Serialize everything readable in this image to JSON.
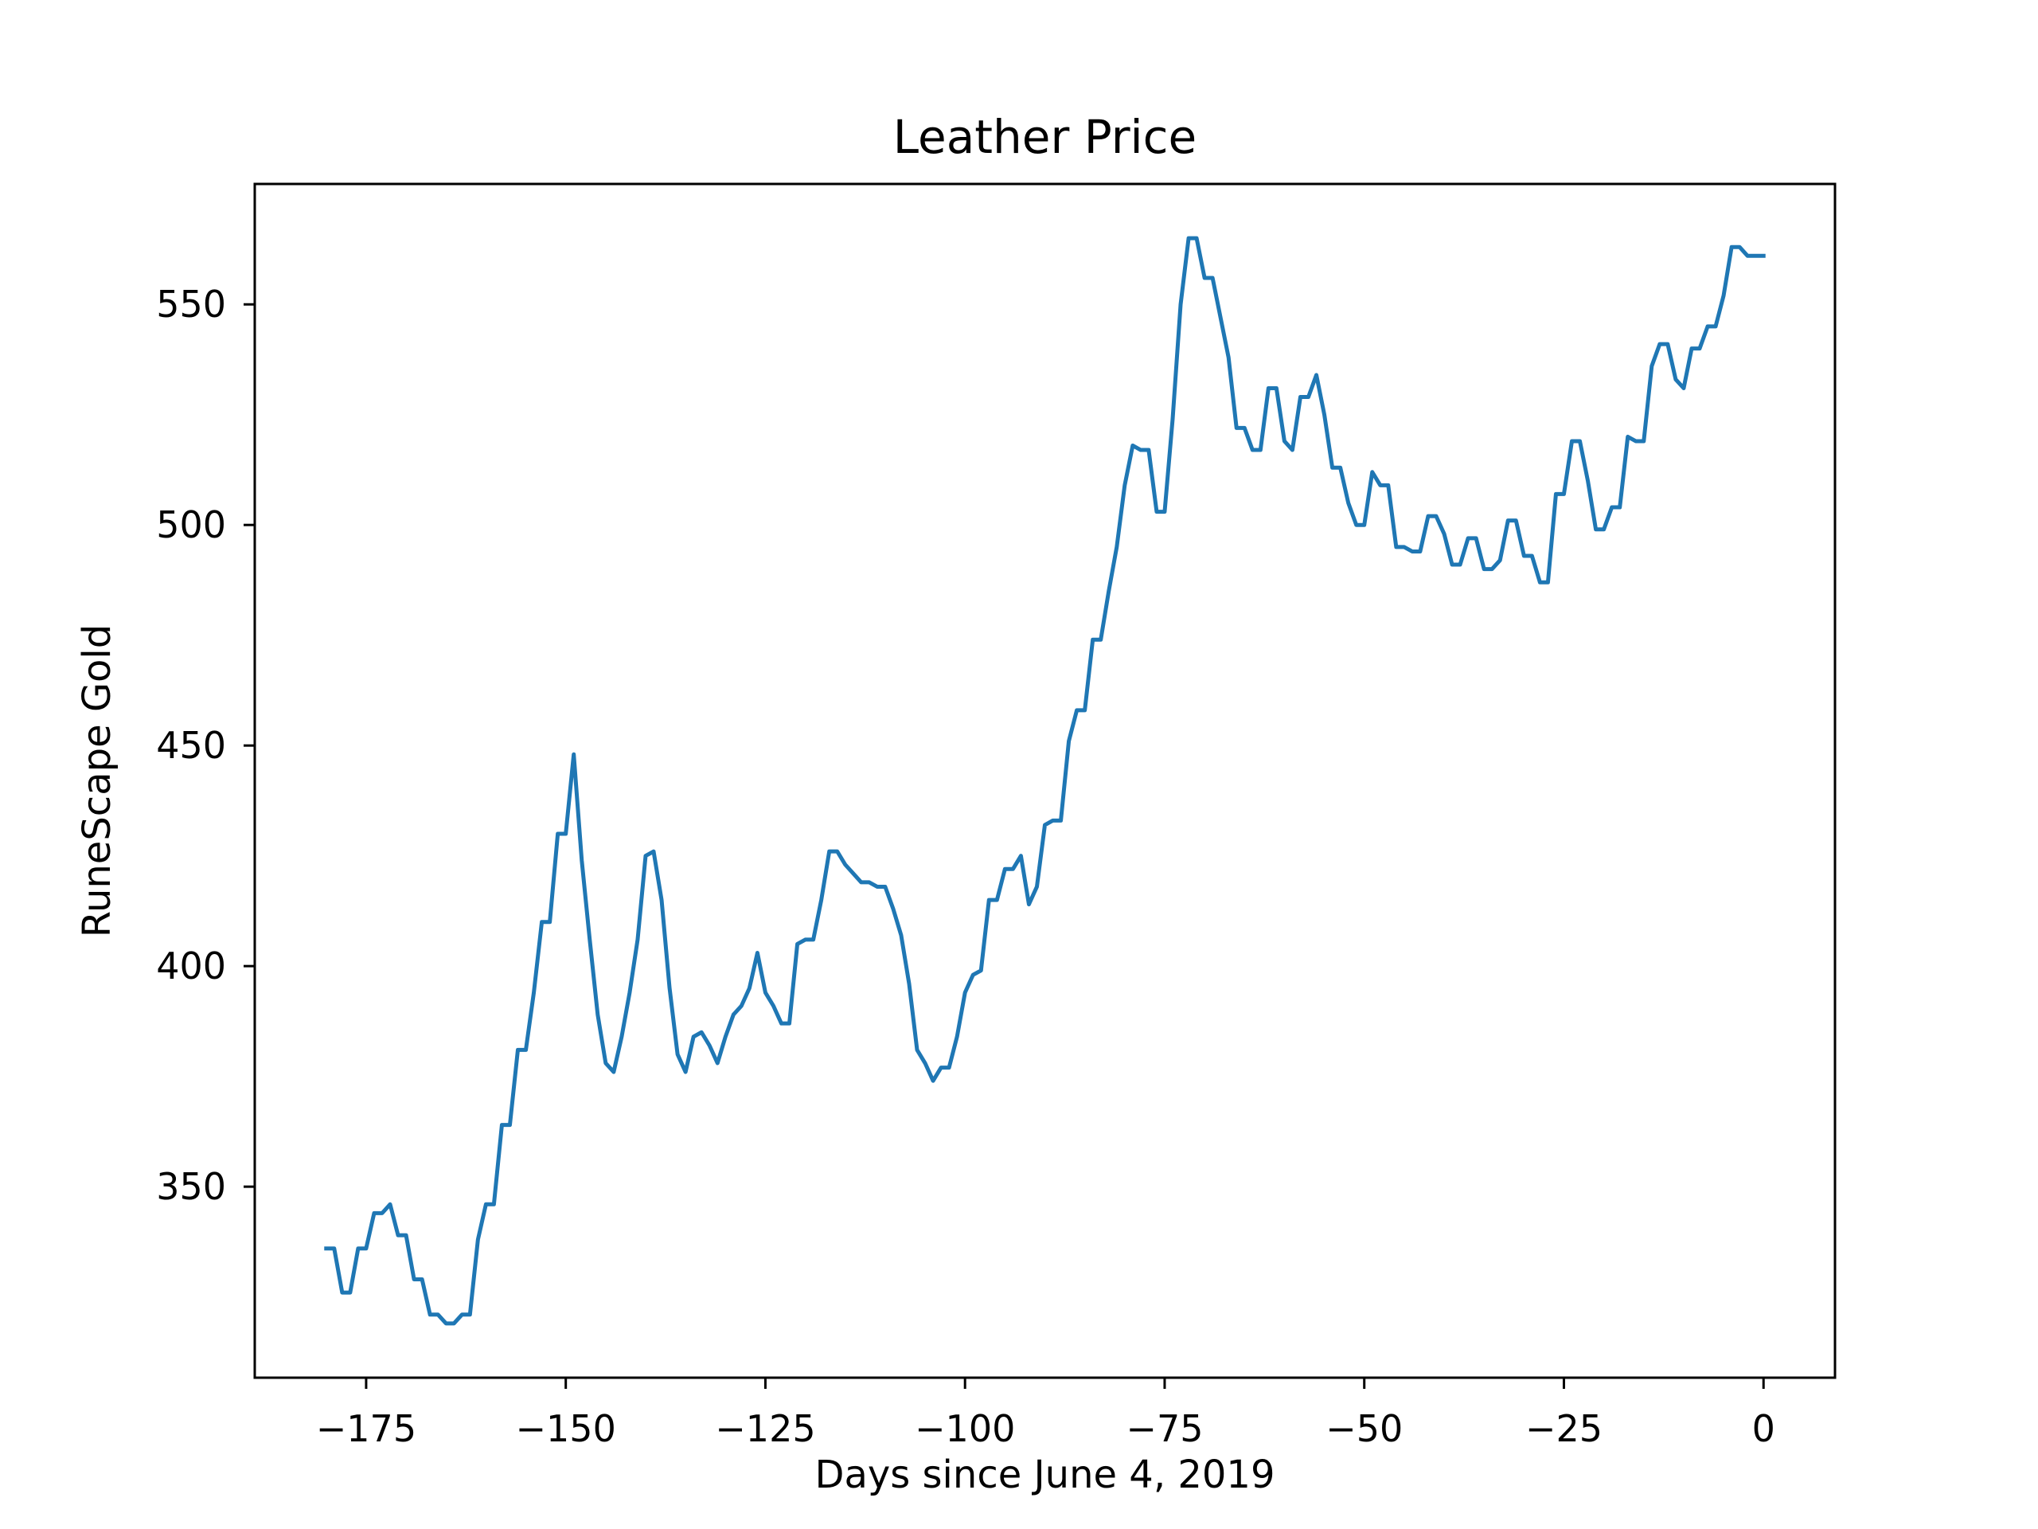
{
  "chart_data": {
    "type": "line",
    "title": "Leather Price",
    "xlabel": "Days since June 4, 2019",
    "ylabel": "RuneScape Gold",
    "xlim": [
      -188.95,
      8.95
    ],
    "ylim": [
      306.7,
      577.3
    ],
    "xticks": [
      -175,
      -150,
      -125,
      -100,
      -75,
      -50,
      -25,
      0
    ],
    "xtick_labels": [
      "−175",
      "−150",
      "−125",
      "−100",
      "−75",
      "−50",
      "−25",
      "0"
    ],
    "yticks": [
      350,
      400,
      450,
      500,
      550
    ],
    "ytick_labels": [
      "350",
      "400",
      "450",
      "500",
      "550"
    ],
    "grid": false,
    "color": "#1f77b4",
    "series": [
      {
        "x": [
          -180,
          -179,
          -178,
          -177,
          -176,
          -175,
          -174,
          -173,
          -172,
          -171,
          -170,
          -169,
          -168,
          -167,
          -166,
          -165,
          -164,
          -163,
          -162,
          -161,
          -160,
          -159,
          -158,
          -157,
          -156,
          -155,
          -154,
          -153,
          -152,
          -151,
          -150,
          -149,
          -148,
          -147,
          -146,
          -145,
          -144,
          -143,
          -142,
          -141,
          -140,
          -139,
          -138,
          -137,
          -136,
          -135,
          -134,
          -133,
          -132,
          -131,
          -130,
          -129,
          -128,
          -127,
          -126,
          -125,
          -124,
          -123,
          -122,
          -121,
          -120,
          -119,
          -118,
          -117,
          -116,
          -115,
          -114,
          -113,
          -112,
          -111,
          -110,
          -109,
          -108,
          -107,
          -106,
          -105,
          -104,
          -103,
          -102,
          -101,
          -100,
          -99,
          -98,
          -97,
          -96,
          -95,
          -94,
          -93,
          -92,
          -91,
          -90,
          -89,
          -88,
          -87,
          -86,
          -85,
          -84,
          -83,
          -82,
          -81,
          -80,
          -79,
          -78,
          -77,
          -76,
          -75,
          -74,
          -73,
          -72,
          -71,
          -70,
          -69,
          -68,
          -67,
          -66,
          -65,
          -64,
          -63,
          -62,
          -61,
          -60,
          -59,
          -58,
          -57,
          -56,
          -55,
          -54,
          -53,
          -52,
          -51,
          -50,
          -49,
          -48,
          -47,
          -46,
          -45,
          -44,
          -43,
          -42,
          -41,
          -40,
          -39,
          -38,
          -37,
          -36,
          -35,
          -34,
          -33,
          -32,
          -31,
          -30,
          -29,
          -28,
          -27,
          -26,
          -25,
          -24,
          -23,
          -22,
          -21,
          -20,
          -19,
          -18,
          -17,
          -16,
          -15,
          -14,
          -13,
          -12,
          -11,
          -10,
          -9,
          -8,
          -7,
          -6,
          -5,
          -4,
          -3,
          -2,
          -1,
          0
        ],
        "y": [
          336,
          336,
          326,
          326,
          336,
          336,
          344,
          344,
          346,
          339,
          339,
          329,
          329,
          321,
          321,
          319,
          319,
          321,
          321,
          338,
          346,
          346,
          364,
          364,
          381,
          381,
          394,
          410,
          410,
          430,
          430,
          448,
          424,
          406,
          389,
          378,
          376,
          384,
          394,
          406,
          425,
          426,
          415,
          395,
          380,
          376,
          384,
          385,
          382,
          378,
          384,
          389,
          391,
          395,
          403,
          394,
          391,
          387,
          387,
          405,
          406,
          406,
          415,
          426,
          426,
          423,
          421,
          419,
          419,
          418,
          418,
          413,
          407,
          396,
          381,
          378,
          374,
          377,
          377,
          384,
          394,
          398,
          399,
          415,
          415,
          422,
          422,
          425,
          414,
          418,
          432,
          433,
          433,
          451,
          458,
          458,
          474,
          474,
          485,
          495,
          509,
          518,
          517,
          517,
          503,
          503,
          524,
          550,
          565,
          565,
          556,
          556,
          547,
          538,
          522,
          522,
          517,
          517,
          531,
          531,
          519,
          517,
          529,
          529,
          534,
          525,
          513,
          513,
          505,
          500,
          500,
          512,
          509,
          509,
          495,
          495,
          494,
          494,
          502,
          502,
          498,
          491,
          491,
          497,
          497,
          490,
          490,
          492,
          501,
          501,
          493,
          493,
          487,
          487,
          507,
          507,
          519,
          519,
          510,
          499,
          499,
          504,
          504,
          520,
          519,
          519,
          536,
          541,
          541,
          533,
          531,
          540,
          540,
          545,
          545,
          552,
          563,
          563,
          561,
          561,
          561
        ]
      }
    ]
  }
}
